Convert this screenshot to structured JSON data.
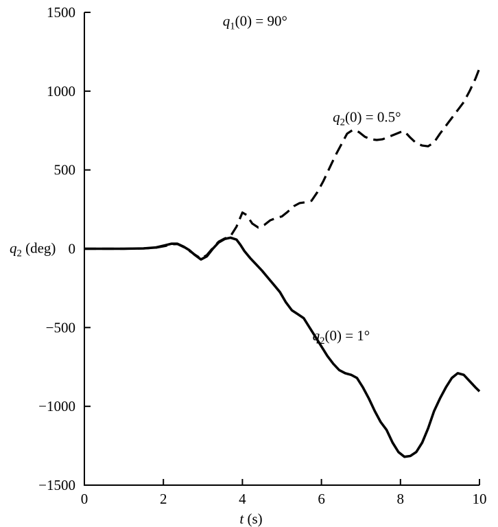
{
  "figure": {
    "background": "#ffffff",
    "ink_color": "#000000"
  },
  "chart_data": {
    "type": "line",
    "title": "",
    "xlabel": {
      "var": "t",
      "sub": "",
      "rest": " (s)"
    },
    "ylabel": {
      "var": "q",
      "sub": "2",
      "rest": " (deg)"
    },
    "xlim": [
      0,
      10
    ],
    "ylim": [
      -1500,
      1500
    ],
    "xticks": [
      0,
      2,
      4,
      6,
      8,
      10
    ],
    "yticks": [
      -1500,
      -1000,
      -500,
      0,
      500,
      1000,
      1500
    ],
    "grid": false,
    "legend_position": "none (inline curve labels)",
    "annotations": [
      {
        "id": "annotation-initial-condition-q1",
        "var": "q",
        "sub": "1",
        "rest": "(0) = 90°",
        "x": 4.32,
        "y": 1445,
        "anchor": "middle"
      },
      {
        "id": "annotation-dashed-curve-label",
        "var": "q",
        "sub": "2",
        "rest": "(0) = 0.5°",
        "x": 7.15,
        "y": 835,
        "anchor": "middle"
      },
      {
        "id": "annotation-solid-curve-label",
        "var": "q",
        "sub": "2",
        "rest": "(0) = 1°",
        "x": 6.5,
        "y": -550,
        "anchor": "middle"
      }
    ],
    "series": [
      {
        "name": "q2(0) = 0.5 deg",
        "style": "dashed",
        "points": [
          [
            0,
            0
          ],
          [
            0.5,
            0
          ],
          [
            1,
            0
          ],
          [
            1.5,
            2
          ],
          [
            1.8,
            6
          ],
          [
            2.05,
            18
          ],
          [
            2.2,
            28
          ],
          [
            2.35,
            30
          ],
          [
            2.5,
            12
          ],
          [
            2.65,
            -12
          ],
          [
            2.8,
            -38
          ],
          [
            2.95,
            -62
          ],
          [
            3.1,
            -40
          ],
          [
            3.25,
            5
          ],
          [
            3.4,
            45
          ],
          [
            3.55,
            65
          ],
          [
            3.7,
            80
          ],
          [
            3.85,
            140
          ],
          [
            4.0,
            230
          ],
          [
            4.1,
            215
          ],
          [
            4.25,
            160
          ],
          [
            4.4,
            135
          ],
          [
            4.55,
            150
          ],
          [
            4.7,
            180
          ],
          [
            4.85,
            195
          ],
          [
            5.0,
            205
          ],
          [
            5.15,
            235
          ],
          [
            5.3,
            270
          ],
          [
            5.45,
            290
          ],
          [
            5.6,
            295
          ],
          [
            5.75,
            305
          ],
          [
            5.9,
            360
          ],
          [
            6.05,
            430
          ],
          [
            6.2,
            510
          ],
          [
            6.35,
            590
          ],
          [
            6.5,
            660
          ],
          [
            6.65,
            730
          ],
          [
            6.8,
            755
          ],
          [
            6.95,
            740
          ],
          [
            7.1,
            710
          ],
          [
            7.25,
            695
          ],
          [
            7.4,
            690
          ],
          [
            7.55,
            695
          ],
          [
            7.7,
            710
          ],
          [
            7.85,
            725
          ],
          [
            8.0,
            740
          ],
          [
            8.1,
            745
          ],
          [
            8.25,
            705
          ],
          [
            8.4,
            670
          ],
          [
            8.55,
            655
          ],
          [
            8.7,
            650
          ],
          [
            8.85,
            675
          ],
          [
            9.0,
            730
          ],
          [
            9.15,
            780
          ],
          [
            9.3,
            830
          ],
          [
            9.45,
            880
          ],
          [
            9.6,
            930
          ],
          [
            9.75,
            1000
          ],
          [
            9.9,
            1080
          ],
          [
            10,
            1145
          ]
        ]
      },
      {
        "name": "q2(0) = 1 deg",
        "style": "solid",
        "points": [
          [
            0,
            0
          ],
          [
            0.5,
            0
          ],
          [
            1,
            0
          ],
          [
            1.5,
            2
          ],
          [
            1.8,
            8
          ],
          [
            2.05,
            22
          ],
          [
            2.2,
            32
          ],
          [
            2.35,
            32
          ],
          [
            2.5,
            15
          ],
          [
            2.65,
            -8
          ],
          [
            2.8,
            -40
          ],
          [
            2.95,
            -68
          ],
          [
            3.1,
            -48
          ],
          [
            3.25,
            0
          ],
          [
            3.4,
            40
          ],
          [
            3.55,
            62
          ],
          [
            3.7,
            70
          ],
          [
            3.85,
            58
          ],
          [
            3.95,
            25
          ],
          [
            4.05,
            -15
          ],
          [
            4.2,
            -60
          ],
          [
            4.35,
            -100
          ],
          [
            4.5,
            -140
          ],
          [
            4.65,
            -185
          ],
          [
            4.8,
            -230
          ],
          [
            4.95,
            -275
          ],
          [
            5.1,
            -340
          ],
          [
            5.25,
            -390
          ],
          [
            5.4,
            -415
          ],
          [
            5.55,
            -440
          ],
          [
            5.7,
            -500
          ],
          [
            5.85,
            -560
          ],
          [
            6.0,
            -620
          ],
          [
            6.15,
            -680
          ],
          [
            6.3,
            -730
          ],
          [
            6.45,
            -770
          ],
          [
            6.6,
            -790
          ],
          [
            6.75,
            -800
          ],
          [
            6.9,
            -820
          ],
          [
            7.05,
            -880
          ],
          [
            7.2,
            -950
          ],
          [
            7.35,
            -1030
          ],
          [
            7.5,
            -1100
          ],
          [
            7.65,
            -1150
          ],
          [
            7.8,
            -1230
          ],
          [
            7.95,
            -1290
          ],
          [
            8.1,
            -1320
          ],
          [
            8.25,
            -1315
          ],
          [
            8.4,
            -1290
          ],
          [
            8.55,
            -1230
          ],
          [
            8.7,
            -1140
          ],
          [
            8.85,
            -1030
          ],
          [
            9.0,
            -950
          ],
          [
            9.15,
            -880
          ],
          [
            9.3,
            -820
          ],
          [
            9.45,
            -790
          ],
          [
            9.6,
            -800
          ],
          [
            9.75,
            -840
          ],
          [
            9.9,
            -880
          ],
          [
            10,
            -905
          ]
        ]
      }
    ]
  }
}
